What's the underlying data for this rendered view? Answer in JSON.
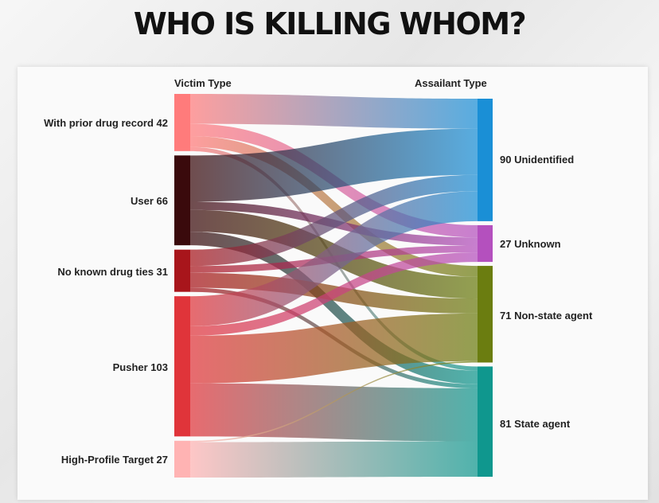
{
  "title": "WHO IS KILLING WHOM?",
  "victim_header": "Victim Type",
  "assailant_header": "Assailant Type",
  "victims": [
    {
      "name": "With prior drug record",
      "value": 42,
      "label": "With prior drug record 42",
      "color": "#ff7b7b"
    },
    {
      "name": "User",
      "value": 66,
      "label": "User 66",
      "color": "#3a0a0c"
    },
    {
      "name": "No known drug ties",
      "value": 31,
      "label": "No known drug ties 31",
      "color": "#a8151b"
    },
    {
      "name": "Pusher",
      "value": 103,
      "label": "Pusher 103",
      "color": "#e0343a"
    },
    {
      "name": "High-Profile Target",
      "value": 27,
      "label": "High-Profile Target 27",
      "color": "#ffb3b3"
    }
  ],
  "assailants": [
    {
      "name": "Unidentified",
      "value": 90,
      "label": "90 Unidentified",
      "color": "#1a8fd6"
    },
    {
      "name": "Unknown",
      "value": 27,
      "label": "27 Unknown",
      "color": "#b450be"
    },
    {
      "name": "Non-state agent",
      "value": 71,
      "label": "71 Non-state agent",
      "color": "#6b7d10"
    },
    {
      "name": "State agent",
      "value": 81,
      "label": "81 State agent",
      "color": "#0f978e"
    }
  ],
  "flows": [
    {
      "from": 0,
      "to": 0,
      "value": 22
    },
    {
      "from": 0,
      "to": 1,
      "value": 9
    },
    {
      "from": 0,
      "to": 2,
      "value": 8
    },
    {
      "from": 0,
      "to": 3,
      "value": 3
    },
    {
      "from": 1,
      "to": 0,
      "value": 34
    },
    {
      "from": 1,
      "to": 1,
      "value": 6
    },
    {
      "from": 1,
      "to": 2,
      "value": 16
    },
    {
      "from": 1,
      "to": 3,
      "value": 10
    },
    {
      "from": 2,
      "to": 0,
      "value": 12
    },
    {
      "from": 2,
      "to": 1,
      "value": 5
    },
    {
      "from": 2,
      "to": 2,
      "value": 11
    },
    {
      "from": 2,
      "to": 3,
      "value": 3
    },
    {
      "from": 3,
      "to": 0,
      "value": 22
    },
    {
      "from": 3,
      "to": 1,
      "value": 7
    },
    {
      "from": 3,
      "to": 2,
      "value": 35
    },
    {
      "from": 3,
      "to": 3,
      "value": 39
    },
    {
      "from": 4,
      "to": 2,
      "value": 1
    },
    {
      "from": 4,
      "to": 3,
      "value": 26
    }
  ]
}
